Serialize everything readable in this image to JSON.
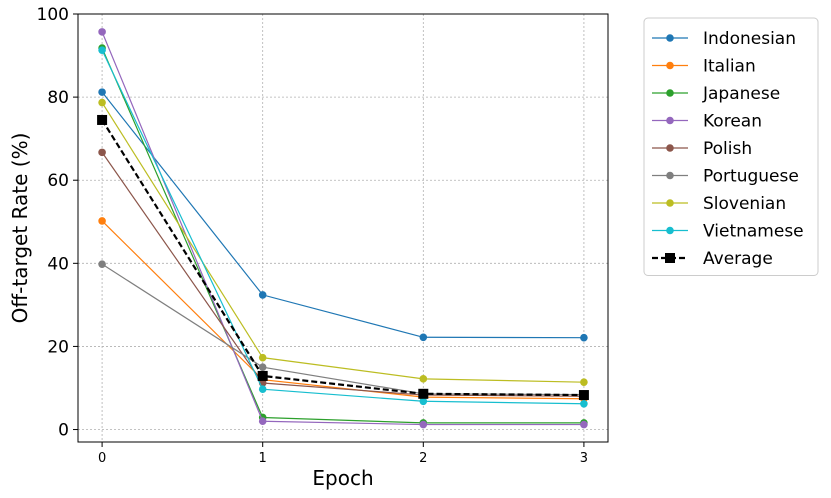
{
  "chart_data": {
    "type": "line",
    "title": "",
    "xlabel": "Epoch",
    "ylabel": "Off-target Rate (%)",
    "x": [
      0,
      1,
      2,
      3
    ],
    "xticks": [
      0,
      1,
      2,
      3
    ],
    "yticks": [
      0,
      20,
      40,
      60,
      80,
      100
    ],
    "xlim": [
      -0.15,
      3.15
    ],
    "ylim": [
      -3,
      100
    ],
    "grid": true,
    "legend_position": "outside-right",
    "series": [
      {
        "name": "Indonesian",
        "color": "#1f77b4",
        "marker": "circle",
        "dashed": false,
        "values": [
          81.2,
          32.4,
          22.2,
          22.1
        ]
      },
      {
        "name": "Italian",
        "color": "#ff7f0e",
        "marker": "circle",
        "dashed": false,
        "values": [
          50.2,
          12.0,
          7.8,
          7.4
        ]
      },
      {
        "name": "Japanese",
        "color": "#2ca02c",
        "marker": "circle",
        "dashed": false,
        "values": [
          91.8,
          2.9,
          1.6,
          1.6
        ]
      },
      {
        "name": "Korean",
        "color": "#9467bd",
        "marker": "circle",
        "dashed": false,
        "values": [
          95.7,
          2.0,
          1.2,
          1.2
        ]
      },
      {
        "name": "Polish",
        "color": "#8c564b",
        "marker": "circle",
        "dashed": false,
        "values": [
          66.7,
          11.2,
          8.3,
          8.0
        ]
      },
      {
        "name": "Portuguese",
        "color": "#7f7f7f",
        "marker": "circle",
        "dashed": false,
        "values": [
          39.8,
          15.0,
          8.6,
          8.4
        ]
      },
      {
        "name": "Slovenian",
        "color": "#bcbd22",
        "marker": "circle",
        "dashed": false,
        "values": [
          78.7,
          17.3,
          12.2,
          11.4
        ]
      },
      {
        "name": "Vietnamese",
        "color": "#17becf",
        "marker": "circle",
        "dashed": false,
        "values": [
          91.3,
          9.7,
          6.8,
          6.2
        ]
      },
      {
        "name": "Average",
        "color": "#000000",
        "marker": "square",
        "dashed": true,
        "values": [
          74.5,
          12.9,
          8.6,
          8.3
        ]
      }
    ]
  }
}
